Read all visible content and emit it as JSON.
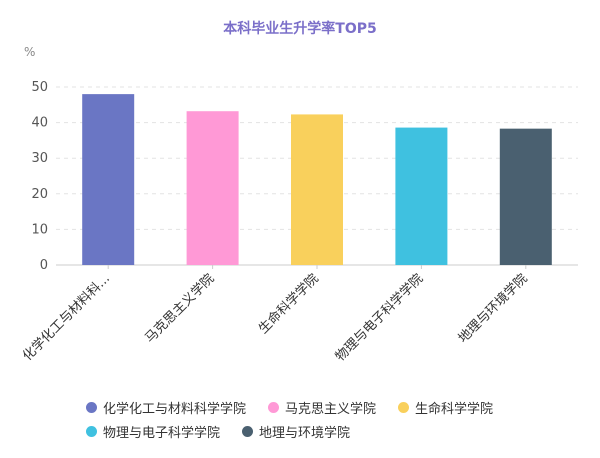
{
  "chart_data": {
    "type": "bar",
    "title": "本科毕业生升学率TOP5",
    "unit": "%",
    "ylim": [
      0,
      50
    ],
    "yticks": [
      0,
      10,
      20,
      30,
      40,
      50
    ],
    "grid": true,
    "legend_position": "bottom",
    "categories": [
      "化学化工与材料科学学院",
      "马克思主义学院",
      "生命科学学院",
      "物理与电子科学学院",
      "地理与环境学院"
    ],
    "tick_labels": [
      "化学化工与材料科...",
      "马克思主义学院",
      "生命科学学院",
      "物理与电子科学学院",
      "地理与环境学院"
    ],
    "values": [
      48.0,
      43.2,
      42.3,
      38.6,
      38.3
    ],
    "colors": [
      "#6a76c4",
      "#ff99d6",
      "#f9d05c",
      "#3fc1e0",
      "#4a6070"
    ]
  }
}
